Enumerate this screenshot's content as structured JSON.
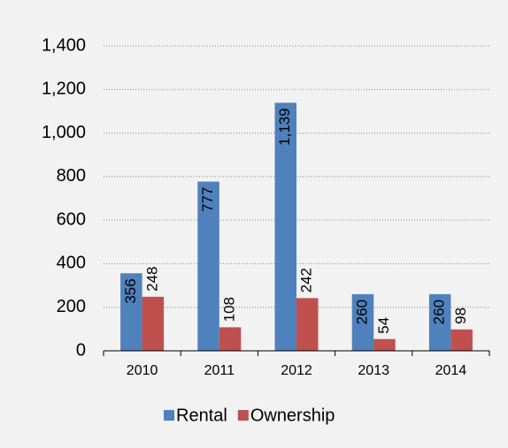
{
  "chart_data": {
    "type": "bar",
    "categories": [
      "2010",
      "2011",
      "2012",
      "2013",
      "2014"
    ],
    "series": [
      {
        "name": "Rental",
        "color": "#4f81bd",
        "values": [
          356,
          777,
          1139,
          260,
          260
        ],
        "value_labels": [
          "356",
          "777",
          "1,139",
          "260",
          "260"
        ]
      },
      {
        "name": "Ownership",
        "color": "#c0504d",
        "values": [
          248,
          108,
          242,
          54,
          98
        ],
        "value_labels": [
          "248",
          "108",
          "242",
          "54",
          "98"
        ]
      }
    ],
    "ylim": [
      0,
      1400
    ],
    "yticks": [
      0,
      200,
      400,
      600,
      800,
      {
        "value": 1000,
        "label": "1,000"
      },
      {
        "value": 1200,
        "label": "1,200"
      },
      {
        "value": 1400,
        "label": "1,400"
      }
    ],
    "grid": true,
    "legend": "bottom"
  }
}
